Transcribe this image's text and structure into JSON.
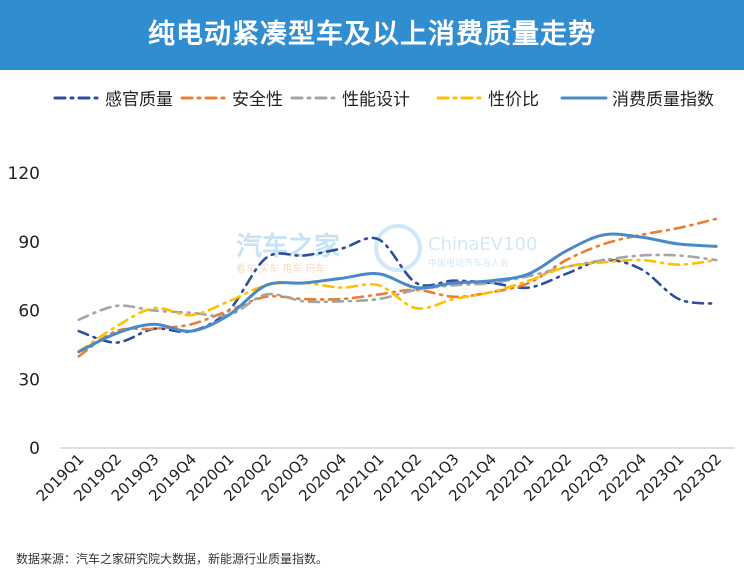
{
  "header": {
    "title": "纯电动紧凑型车及以上消费质量走势"
  },
  "watermark": {
    "brand_cn": "汽车之家",
    "brand_sub": "看车 买车 用车 玩车",
    "partner": "ChinaEV100",
    "partner_sub": "中国电动汽车百人会"
  },
  "footnote": "数据来源：汽车之家研究院大数据，新能源行业质量指数。",
  "colors": {
    "header_bg": "#2f8dd0",
    "axis": "#bfbfbf"
  },
  "chart_data": {
    "type": "line",
    "title": "纯电动紧凑型车及以上消费质量走势",
    "xlabel": "",
    "ylabel": "",
    "ylim": [
      0,
      120
    ],
    "yticks": [
      0,
      30,
      60,
      90,
      120
    ],
    "grid": false,
    "legend_position": "top",
    "categories": [
      "2019Q1",
      "2019Q2",
      "2019Q3",
      "2019Q4",
      "2020Q1",
      "2020Q2",
      "2020Q3",
      "2020Q4",
      "2021Q1",
      "2021Q2",
      "2021Q3",
      "2021Q4",
      "2022Q1",
      "2022Q2",
      "2022Q3",
      "2022Q4",
      "2023Q1",
      "2023Q2"
    ],
    "series": [
      {
        "name": "感官质量",
        "color": "#2e4f9e",
        "dash": "dashdot",
        "values": [
          51,
          46,
          52,
          51,
          60,
          83,
          84,
          87,
          91,
          72,
          73,
          72,
          70,
          76,
          82,
          78,
          65,
          63
        ]
      },
      {
        "name": "安全性",
        "color": "#ed7d31",
        "dash": "dashdot",
        "values": [
          40,
          51,
          52,
          54,
          60,
          66,
          65,
          65,
          67,
          69,
          66,
          68,
          72,
          82,
          89,
          93,
          96,
          100
        ]
      },
      {
        "name": "性能设计",
        "color": "#a5a5a5",
        "dash": "dashdot",
        "values": [
          56,
          62,
          60,
          59,
          58,
          67,
          64,
          64,
          65,
          69,
          71,
          72,
          75,
          79,
          82,
          84,
          84,
          82
        ]
      },
      {
        "name": "性价比",
        "color": "#ffc000",
        "dash": "dashdot",
        "values": [
          42,
          53,
          61,
          58,
          64,
          71,
          72,
          70,
          71,
          61,
          65,
          68,
          73,
          79,
          81,
          82,
          80,
          82
        ]
      },
      {
        "name": "消费质量指数",
        "color": "#4a8ac8",
        "dash": "solid",
        "values": [
          42,
          50,
          54,
          51,
          58,
          71,
          72,
          74,
          76,
          70,
          72,
          73,
          76,
          86,
          93,
          92,
          89,
          88
        ]
      }
    ]
  }
}
